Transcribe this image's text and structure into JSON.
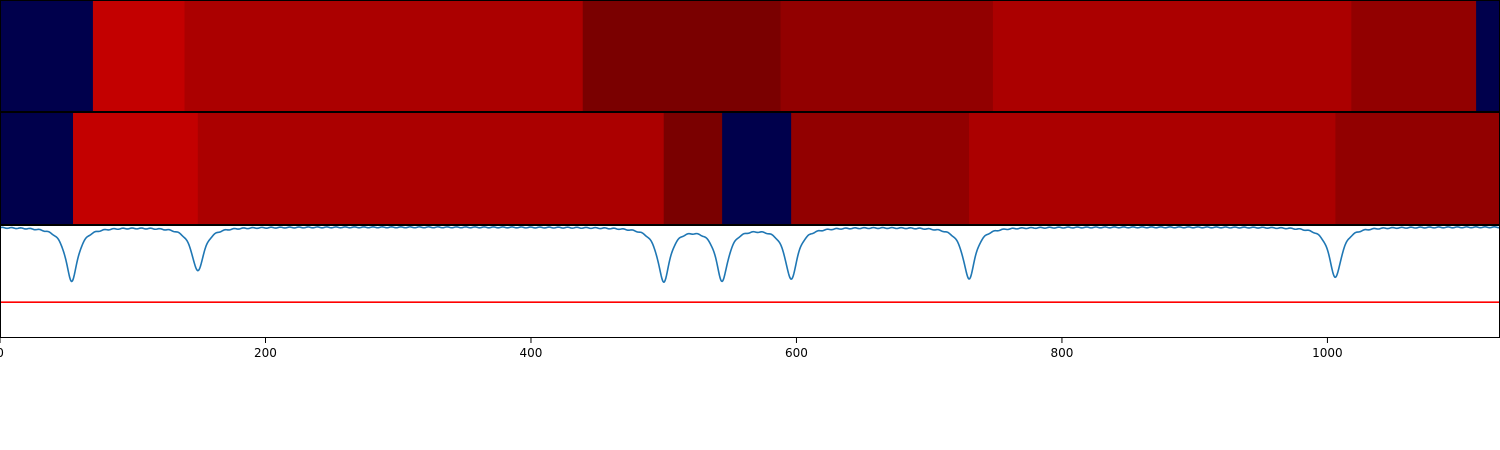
{
  "chart_data": [
    {
      "type": "heatmap",
      "xlim": [
        0,
        1130
      ],
      "colormap": "seismic",
      "segments": [
        {
          "x0": 0,
          "x1": 70,
          "color": "#00004c"
        },
        {
          "x0": 70,
          "x1": 139,
          "color": "#c30000"
        },
        {
          "x0": 139,
          "x1": 439,
          "color": "#ab0000"
        },
        {
          "x0": 439,
          "x1": 588,
          "color": "#7a0000"
        },
        {
          "x0": 588,
          "x1": 748,
          "color": "#920000"
        },
        {
          "x0": 748,
          "x1": 1018,
          "color": "#ab0000"
        },
        {
          "x0": 1018,
          "x1": 1112,
          "color": "#920000"
        },
        {
          "x0": 1112,
          "x1": 1130,
          "color": "#00004c"
        }
      ]
    },
    {
      "type": "heatmap",
      "xlim": [
        0,
        1130
      ],
      "colormap": "seismic",
      "segments": [
        {
          "x0": 0,
          "x1": 55,
          "color": "#00004c"
        },
        {
          "x0": 55,
          "x1": 149,
          "color": "#c30000"
        },
        {
          "x0": 149,
          "x1": 500,
          "color": "#ab0000"
        },
        {
          "x0": 500,
          "x1": 544,
          "color": "#7a0000"
        },
        {
          "x0": 544,
          "x1": 596,
          "color": "#00004c"
        },
        {
          "x0": 596,
          "x1": 730,
          "color": "#920000"
        },
        {
          "x0": 730,
          "x1": 1006,
          "color": "#ab0000"
        },
        {
          "x0": 1006,
          "x1": 1130,
          "color": "#920000"
        }
      ]
    },
    {
      "type": "line",
      "xlim": [
        0,
        1130
      ],
      "ylim": [
        0,
        1
      ],
      "xticks": [
        0,
        200,
        400,
        600,
        800,
        1000
      ],
      "xtick_labels": [
        "0",
        "200",
        "400",
        "600",
        "800",
        "1000"
      ],
      "baseline": 0.99,
      "series": [
        {
          "color": "#1f77b4",
          "dips": [
            {
              "x": 54,
              "depth": 0.48
            },
            {
              "x": 149,
              "depth": 0.39
            },
            {
              "x": 500,
              "depth": 0.48
            },
            {
              "x": 544,
              "depth": 0.47
            },
            {
              "x": 596,
              "depth": 0.46
            },
            {
              "x": 730,
              "depth": 0.46
            },
            {
              "x": 1006,
              "depth": 0.45
            }
          ]
        }
      ],
      "threshold": {
        "y": 0.32,
        "color": "#ff0000"
      }
    }
  ]
}
